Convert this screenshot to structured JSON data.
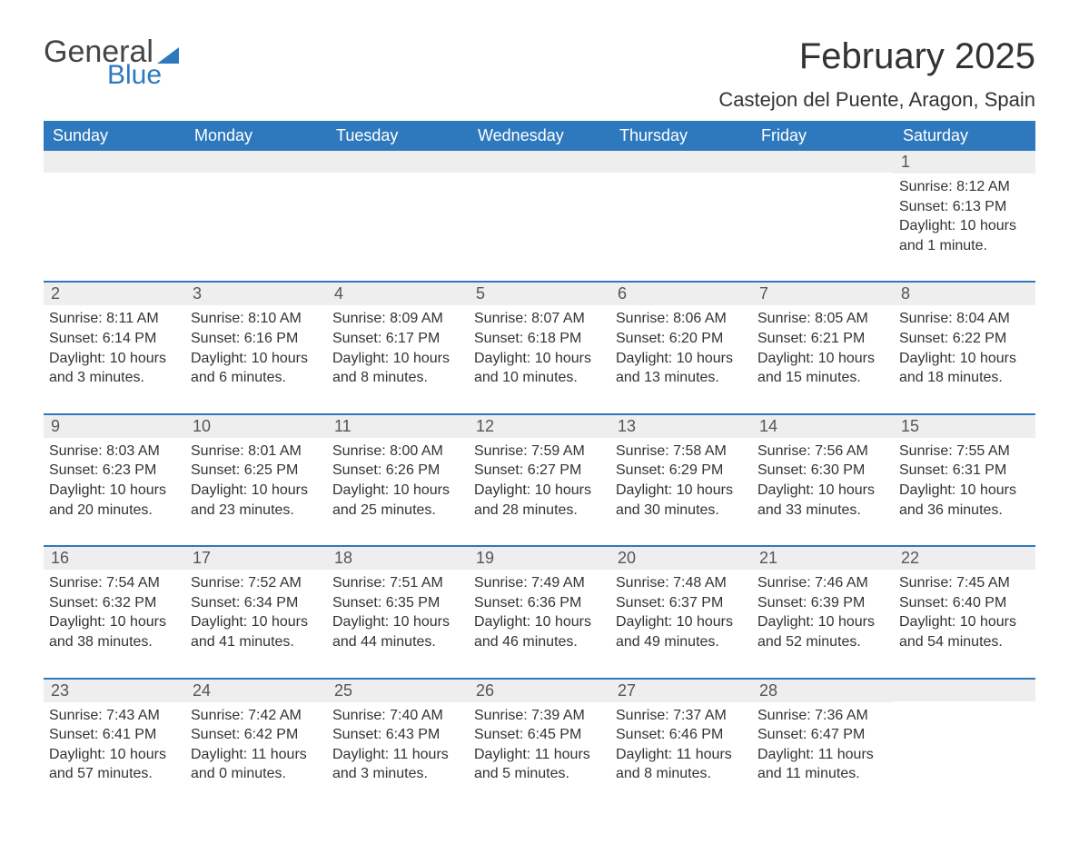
{
  "logo": {
    "word1": "General",
    "word2": "Blue"
  },
  "header": {
    "month_title": "February 2025",
    "location": "Castejon del Puente, Aragon, Spain"
  },
  "colors": {
    "header_bg": "#2e79bd",
    "header_text": "#ffffff",
    "week_border": "#2e79bd",
    "daynum_bg": "#eeeeee",
    "body_text": "#333333",
    "background": "#ffffff"
  },
  "typography": {
    "title_fontsize": 40,
    "location_fontsize": 22,
    "dow_fontsize": 18,
    "daynum_fontsize": 18,
    "body_fontsize": 16,
    "font_family": "Arial"
  },
  "calendar": {
    "days_of_week": [
      "Sunday",
      "Monday",
      "Tuesday",
      "Wednesday",
      "Thursday",
      "Friday",
      "Saturday"
    ],
    "weeks": [
      [
        null,
        null,
        null,
        null,
        null,
        null,
        {
          "num": "1",
          "sunrise": "Sunrise: 8:12 AM",
          "sunset": "Sunset: 6:13 PM",
          "daylight": "Daylight: 10 hours and 1 minute."
        }
      ],
      [
        {
          "num": "2",
          "sunrise": "Sunrise: 8:11 AM",
          "sunset": "Sunset: 6:14 PM",
          "daylight": "Daylight: 10 hours and 3 minutes."
        },
        {
          "num": "3",
          "sunrise": "Sunrise: 8:10 AM",
          "sunset": "Sunset: 6:16 PM",
          "daylight": "Daylight: 10 hours and 6 minutes."
        },
        {
          "num": "4",
          "sunrise": "Sunrise: 8:09 AM",
          "sunset": "Sunset: 6:17 PM",
          "daylight": "Daylight: 10 hours and 8 minutes."
        },
        {
          "num": "5",
          "sunrise": "Sunrise: 8:07 AM",
          "sunset": "Sunset: 6:18 PM",
          "daylight": "Daylight: 10 hours and 10 minutes."
        },
        {
          "num": "6",
          "sunrise": "Sunrise: 8:06 AM",
          "sunset": "Sunset: 6:20 PM",
          "daylight": "Daylight: 10 hours and 13 minutes."
        },
        {
          "num": "7",
          "sunrise": "Sunrise: 8:05 AM",
          "sunset": "Sunset: 6:21 PM",
          "daylight": "Daylight: 10 hours and 15 minutes."
        },
        {
          "num": "8",
          "sunrise": "Sunrise: 8:04 AM",
          "sunset": "Sunset: 6:22 PM",
          "daylight": "Daylight: 10 hours and 18 minutes."
        }
      ],
      [
        {
          "num": "9",
          "sunrise": "Sunrise: 8:03 AM",
          "sunset": "Sunset: 6:23 PM",
          "daylight": "Daylight: 10 hours and 20 minutes."
        },
        {
          "num": "10",
          "sunrise": "Sunrise: 8:01 AM",
          "sunset": "Sunset: 6:25 PM",
          "daylight": "Daylight: 10 hours and 23 minutes."
        },
        {
          "num": "11",
          "sunrise": "Sunrise: 8:00 AM",
          "sunset": "Sunset: 6:26 PM",
          "daylight": "Daylight: 10 hours and 25 minutes."
        },
        {
          "num": "12",
          "sunrise": "Sunrise: 7:59 AM",
          "sunset": "Sunset: 6:27 PM",
          "daylight": "Daylight: 10 hours and 28 minutes."
        },
        {
          "num": "13",
          "sunrise": "Sunrise: 7:58 AM",
          "sunset": "Sunset: 6:29 PM",
          "daylight": "Daylight: 10 hours and 30 minutes."
        },
        {
          "num": "14",
          "sunrise": "Sunrise: 7:56 AM",
          "sunset": "Sunset: 6:30 PM",
          "daylight": "Daylight: 10 hours and 33 minutes."
        },
        {
          "num": "15",
          "sunrise": "Sunrise: 7:55 AM",
          "sunset": "Sunset: 6:31 PM",
          "daylight": "Daylight: 10 hours and 36 minutes."
        }
      ],
      [
        {
          "num": "16",
          "sunrise": "Sunrise: 7:54 AM",
          "sunset": "Sunset: 6:32 PM",
          "daylight": "Daylight: 10 hours and 38 minutes."
        },
        {
          "num": "17",
          "sunrise": "Sunrise: 7:52 AM",
          "sunset": "Sunset: 6:34 PM",
          "daylight": "Daylight: 10 hours and 41 minutes."
        },
        {
          "num": "18",
          "sunrise": "Sunrise: 7:51 AM",
          "sunset": "Sunset: 6:35 PM",
          "daylight": "Daylight: 10 hours and 44 minutes."
        },
        {
          "num": "19",
          "sunrise": "Sunrise: 7:49 AM",
          "sunset": "Sunset: 6:36 PM",
          "daylight": "Daylight: 10 hours and 46 minutes."
        },
        {
          "num": "20",
          "sunrise": "Sunrise: 7:48 AM",
          "sunset": "Sunset: 6:37 PM",
          "daylight": "Daylight: 10 hours and 49 minutes."
        },
        {
          "num": "21",
          "sunrise": "Sunrise: 7:46 AM",
          "sunset": "Sunset: 6:39 PM",
          "daylight": "Daylight: 10 hours and 52 minutes."
        },
        {
          "num": "22",
          "sunrise": "Sunrise: 7:45 AM",
          "sunset": "Sunset: 6:40 PM",
          "daylight": "Daylight: 10 hours and 54 minutes."
        }
      ],
      [
        {
          "num": "23",
          "sunrise": "Sunrise: 7:43 AM",
          "sunset": "Sunset: 6:41 PM",
          "daylight": "Daylight: 10 hours and 57 minutes."
        },
        {
          "num": "24",
          "sunrise": "Sunrise: 7:42 AM",
          "sunset": "Sunset: 6:42 PM",
          "daylight": "Daylight: 11 hours and 0 minutes."
        },
        {
          "num": "25",
          "sunrise": "Sunrise: 7:40 AM",
          "sunset": "Sunset: 6:43 PM",
          "daylight": "Daylight: 11 hours and 3 minutes."
        },
        {
          "num": "26",
          "sunrise": "Sunrise: 7:39 AM",
          "sunset": "Sunset: 6:45 PM",
          "daylight": "Daylight: 11 hours and 5 minutes."
        },
        {
          "num": "27",
          "sunrise": "Sunrise: 7:37 AM",
          "sunset": "Sunset: 6:46 PM",
          "daylight": "Daylight: 11 hours and 8 minutes."
        },
        {
          "num": "28",
          "sunrise": "Sunrise: 7:36 AM",
          "sunset": "Sunset: 6:47 PM",
          "daylight": "Daylight: 11 hours and 11 minutes."
        },
        null
      ]
    ]
  }
}
